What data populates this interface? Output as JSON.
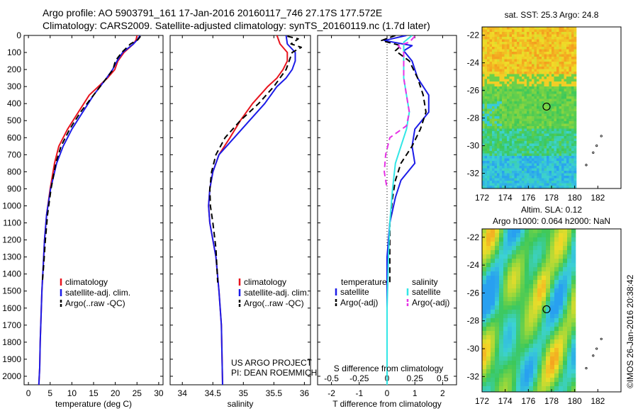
{
  "header": {
    "line1": "Argo profile: AO 5903791_161 17-Jan-2016 20160117_746 27.17S 177.572E",
    "line2": "Climatology: CARS2009. Satellite-adjusted climatology: synTS_20160119.nc (1.7d later)"
  },
  "footer": {
    "project": "US ARGO PROJECT",
    "pi": "PI: DEAN ROEMMICH",
    "timestamp": "©IMOS 26-Jan-2016 20:38:42"
  },
  "colors": {
    "climatology": "#e8141e",
    "satellite": "#1c1ce8",
    "argo": "#000000",
    "cyan": "#32e6e6",
    "magenta": "#e632e6"
  },
  "chart_data": [
    {
      "type": "line",
      "xlabel": "temperature (deg C)",
      "ylabel": "",
      "xlim": [
        -1,
        31
      ],
      "ylim": [
        2050,
        0
      ],
      "y_reversed": true,
      "x_ticks": [
        0,
        5,
        10,
        15,
        20,
        25,
        30
      ],
      "y_ticks": [
        0,
        100,
        200,
        300,
        400,
        500,
        600,
        700,
        800,
        900,
        1000,
        1100,
        1200,
        1300,
        1400,
        1500,
        1600,
        1700,
        1800,
        1900,
        2000
      ],
      "legend": {
        "position": "lower-middle",
        "entries": [
          "climatology",
          "satellite-adj. clim.",
          "Argo(..raw -QC)"
        ]
      },
      "series": [
        {
          "name": "climatology",
          "color": "#e8141e",
          "x": [
            25,
            24.8,
            24.2,
            22,
            20.6,
            19.9,
            18.2,
            14,
            11.5,
            9,
            7,
            6,
            5,
            4.2,
            3.7,
            3.4,
            3.1,
            2.9,
            2.7,
            2.6,
            2.4
          ],
          "y": [
            0,
            25,
            50,
            100,
            150,
            200,
            250,
            350,
            450,
            550,
            650,
            750,
            900,
            1050,
            1200,
            1350,
            1500,
            1650,
            1800,
            1950,
            2050
          ]
        },
        {
          "name": "satellite-adj. clim.",
          "color": "#1c1ce8",
          "x": [
            25.7,
            25.1,
            24.2,
            21.7,
            20.4,
            19.4,
            18,
            15,
            12.5,
            10,
            8,
            6.5,
            5.1,
            4.2,
            3.7,
            3.4,
            3.1,
            2.9,
            2.7,
            2.6,
            2.4
          ],
          "y": [
            0,
            25,
            50,
            100,
            150,
            200,
            250,
            350,
            450,
            550,
            650,
            750,
            900,
            1050,
            1200,
            1350,
            1500,
            1650,
            1800,
            1950,
            2050
          ]
        },
        {
          "name": "Argo(..raw -QC)",
          "color": "#000000",
          "x": [
            25.8,
            25.2,
            23.5,
            21.5,
            20,
            19.5,
            18,
            15,
            12,
            9.5,
            7.5,
            6.3,
            5.2,
            4.4,
            3.9,
            3.5,
            3.2
          ],
          "y": [
            5,
            25,
            50,
            100,
            150,
            200,
            250,
            350,
            450,
            550,
            650,
            750,
            900,
            1050,
            1200,
            1350,
            1450
          ]
        }
      ]
    },
    {
      "type": "line",
      "xlabel": "salinity",
      "xlim": [
        33.8,
        36.1
      ],
      "ylim": [
        2050,
        0
      ],
      "y_reversed": true,
      "x_ticks": [
        34,
        34.5,
        35,
        35.5,
        36
      ],
      "legend": {
        "position": "lower-middle",
        "entries": [
          "climatology",
          "satellite-adj. clim.",
          "Argo(..raw -QC)"
        ]
      },
      "series": [
        {
          "name": "climatology",
          "color": "#e8141e",
          "x": [
            35.55,
            35.6,
            35.72,
            35.72,
            35.65,
            35.55,
            35.4,
            35.15,
            34.95,
            34.78,
            34.6,
            34.5,
            34.45,
            34.43,
            34.45,
            34.5,
            34.55,
            34.6,
            34.64,
            34.66
          ],
          "y": [
            0,
            50,
            100,
            150,
            200,
            250,
            300,
            400,
            500,
            600,
            700,
            800,
            900,
            1000,
            1100,
            1200,
            1300,
            1500,
            1700,
            2050
          ]
        },
        {
          "name": "satellite-adj. clim.",
          "color": "#1c1ce8",
          "x": [
            35.7,
            35.72,
            35.85,
            35.85,
            35.8,
            35.7,
            35.55,
            35.35,
            35.1,
            34.85,
            34.6,
            34.5,
            34.45,
            34.43,
            34.45,
            34.5,
            34.55,
            34.6,
            34.64,
            34.66
          ],
          "y": [
            0,
            50,
            100,
            150,
            200,
            250,
            300,
            400,
            500,
            600,
            700,
            800,
            900,
            1000,
            1100,
            1200,
            1300,
            1500,
            1700,
            2050
          ]
        },
        {
          "name": "Argo(..raw -QC)",
          "color": "#000000",
          "x": [
            35.72,
            35.9,
            35.78,
            35.95,
            35.8,
            35.7,
            35.5,
            35.25,
            34.95,
            34.7,
            34.55,
            34.48,
            34.45,
            34.46,
            34.5,
            34.55,
            34.58
          ],
          "y": [
            5,
            20,
            50,
            70,
            100,
            200,
            300,
            400,
            500,
            600,
            700,
            800,
            900,
            1000,
            1100,
            1250,
            1450
          ]
        }
      ]
    },
    {
      "type": "line",
      "xlabel": "T difference from climatology",
      "xlabel_top": "S difference from climatology",
      "xlim": [
        -2.5,
        2.5
      ],
      "ylim": [
        2050,
        0
      ],
      "y_reversed": true,
      "x_ticks": [
        -2,
        -1,
        0,
        1,
        2
      ],
      "x_ticks_top": [
        -0.5,
        -0.25,
        0,
        0.25,
        0.5
      ],
      "legend": {
        "position": "lower",
        "titles": [
          "temperature",
          "salinity"
        ],
        "entries": [
          "satellite",
          "Argo(-adj)",
          "satellite",
          "Argo(-adj)"
        ]
      },
      "series": [
        {
          "name": "satellite",
          "group": "temperature",
          "color": "#1c1ce8",
          "x": [
            0.7,
            -0.1,
            0.9,
            0.6,
            0.9,
            1.1,
            1.5,
            1.5,
            1.0,
            0.9,
            1.0,
            0.5,
            0.3,
            0.1,
            0.0,
            0.0,
            0.0,
            0.0
          ],
          "y": [
            0,
            30,
            60,
            90,
            150,
            250,
            350,
            450,
            550,
            650,
            750,
            850,
            950,
            1100,
            1300,
            1500,
            1800,
            2050
          ]
        },
        {
          "name": "Argo(-adj)",
          "group": "temperature",
          "color": "#000000",
          "x": [
            0.3,
            -0.2,
            0.5,
            0.3,
            0.8,
            1.1,
            1.3,
            1.4,
            1.2,
            0.9,
            0.5,
            0.3,
            0.2,
            0.1,
            0.1
          ],
          "y": [
            0,
            30,
            60,
            90,
            150,
            250,
            350,
            450,
            550,
            650,
            750,
            850,
            950,
            1100,
            1450
          ]
        },
        {
          "name": "satellite",
          "group": "salinity",
          "color": "#32e6e6",
          "x": [
            0.9,
            0.6,
            0.6,
            0.6,
            0.6,
            0.7,
            0.8,
            0.7,
            0.5,
            0.3,
            0.2,
            0.1,
            0.05,
            0.0,
            0.0
          ],
          "y": [
            0,
            40,
            80,
            150,
            250,
            350,
            450,
            550,
            650,
            750,
            900,
            1100,
            1300,
            1600,
            2050
          ]
        },
        {
          "name": "Argo(-adj)",
          "group": "salinity",
          "color": "#e632e6",
          "x": [
            1.0,
            0.8,
            0.4,
            0.6,
            0.6,
            0.7,
            0.8,
            0.7,
            0.1,
            -0.05,
            -0.1,
            0.0
          ],
          "y": [
            5,
            40,
            60,
            100,
            250,
            350,
            450,
            530,
            600,
            700,
            800,
            900
          ]
        }
      ]
    },
    {
      "type": "heatmap",
      "title": "sat. SST: 25.3  Argo: 24.8",
      "x_ticks": [
        172,
        174,
        176,
        178,
        180,
        182
      ],
      "y_ticks": [
        -22,
        -24,
        -26,
        -28,
        -30,
        -32
      ],
      "xlim": [
        172,
        184
      ],
      "ylim": [
        -33.1,
        -21.4
      ],
      "marker": {
        "lon": 177.57,
        "lat": -27.17
      }
    },
    {
      "type": "heatmap",
      "title": "Altim. SLA: 0.12",
      "subtitle": "Argo h1000: 0.064 h2000: NaN",
      "x_ticks": [
        172,
        174,
        176,
        178,
        180,
        182
      ],
      "y_ticks": [
        -22,
        -24,
        -26,
        -28,
        -30,
        -32
      ],
      "xlim": [
        172,
        184
      ],
      "ylim": [
        -33.1,
        -21.4
      ],
      "marker": {
        "lon": 177.57,
        "lat": -27.17
      }
    }
  ]
}
